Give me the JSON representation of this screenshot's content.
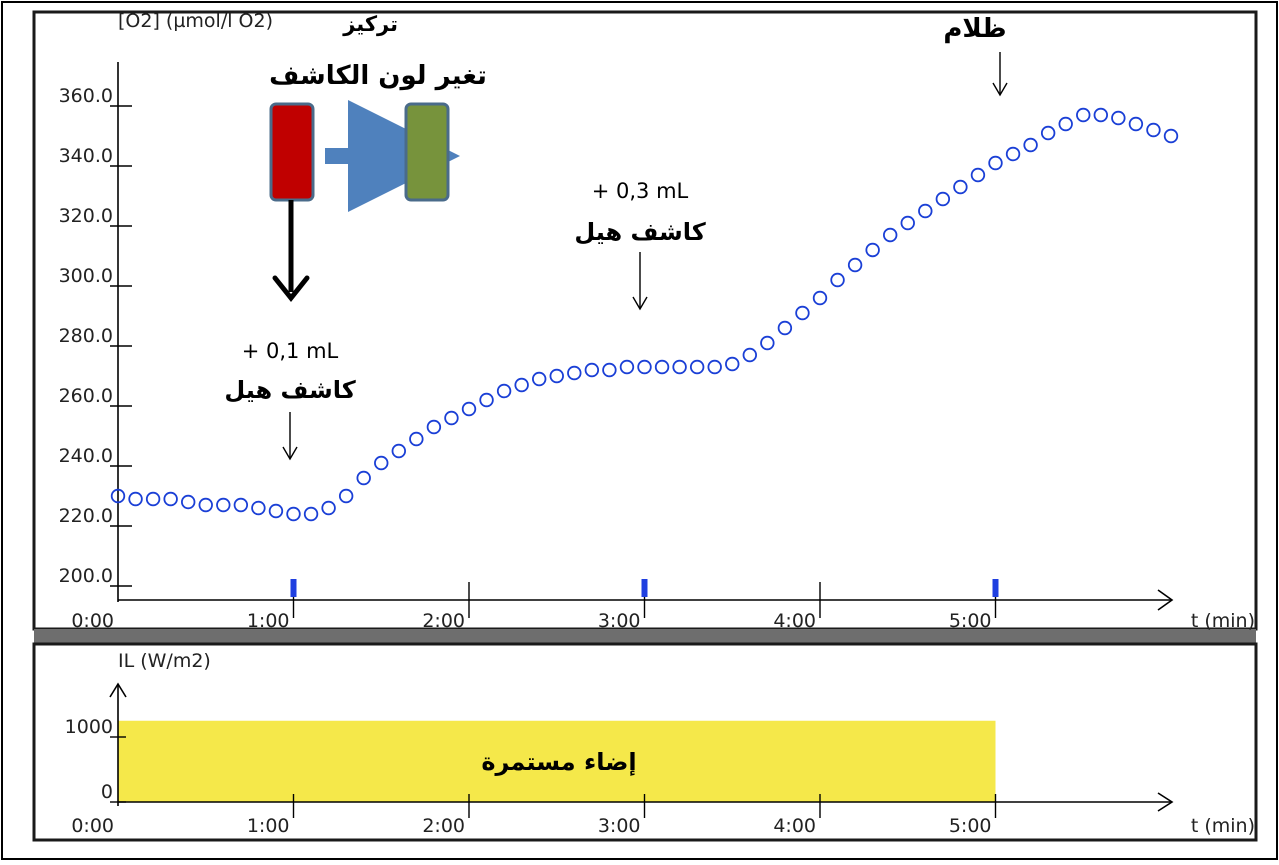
{
  "chart_data": [
    {
      "type": "scatter",
      "ylabel": "[O2] (µmol/l O2)",
      "ylabel_ar": "تركيز",
      "xlabel": "t (min)",
      "x_tick_labels": [
        "0:00",
        "1:00",
        "2:00",
        "3:00",
        "4:00",
        "5:00"
      ],
      "y_tick_labels": [
        "200.0",
        "220.0",
        "240.0",
        "260.0",
        "280.0",
        "300.0",
        "320.0",
        "340.0",
        "360.0"
      ],
      "xlim": [
        0,
        6.1
      ],
      "ylim": [
        190,
        370
      ],
      "marker_color": "#1a3fd6",
      "x": [
        0.0,
        0.1,
        0.2,
        0.3,
        0.4,
        0.5,
        0.6,
        0.7,
        0.8,
        0.9,
        1.0,
        1.1,
        1.2,
        1.3,
        1.4,
        1.5,
        1.6,
        1.7,
        1.8,
        1.9,
        2.0,
        2.1,
        2.2,
        2.3,
        2.4,
        2.5,
        2.6,
        2.7,
        2.8,
        2.9,
        3.0,
        3.1,
        3.2,
        3.3,
        3.4,
        3.5,
        3.6,
        3.7,
        3.8,
        3.9,
        4.0,
        4.1,
        4.2,
        4.3,
        4.4,
        4.5,
        4.6,
        4.7,
        4.8,
        4.9,
        5.0,
        5.1,
        5.2,
        5.3,
        5.4,
        5.5,
        5.6,
        5.7,
        5.8,
        5.9,
        6.0
      ],
      "values": [
        230,
        229,
        229,
        229,
        228,
        227,
        227,
        227,
        226,
        225,
        224,
        224,
        226,
        230,
        236,
        241,
        245,
        249,
        253,
        256,
        259,
        262,
        265,
        267,
        269,
        270,
        271,
        272,
        272,
        273,
        273,
        273,
        273,
        273,
        273,
        274,
        277,
        281,
        286,
        291,
        296,
        302,
        307,
        312,
        317,
        321,
        325,
        329,
        333,
        337,
        341,
        344,
        347,
        351,
        354,
        357,
        357,
        356,
        354,
        352,
        350
      ],
      "annotations": [
        {
          "x": 1.0,
          "lines": [
            "+ 0,1 mL",
            "كاشف هيل"
          ]
        },
        {
          "x": 3.0,
          "lines": [
            "+ 0,3 mL",
            "كاشف هيل"
          ]
        },
        {
          "x": 5.0,
          "lines": [
            "ظلام"
          ]
        }
      ],
      "inset_label": "تغير لون الكاشف",
      "inset_colors": {
        "before": "#c00000",
        "after": "#77933c",
        "arrow": "#4f81bd"
      }
    },
    {
      "type": "area",
      "ylabel": "IL (W/m2)",
      "xlabel": "t (min)",
      "x_tick_labels": [
        "0:00",
        "1:00",
        "2:00",
        "3:00",
        "4:00",
        "5:00"
      ],
      "y_tick_labels": [
        "0",
        "1000"
      ],
      "xlim": [
        0,
        6.1
      ],
      "ylim": [
        0,
        1300
      ],
      "x": [
        0,
        5.0
      ],
      "values": [
        1250,
        1250
      ],
      "fill_color": "#f5e84a",
      "region_label": "إضاء مستمرة"
    }
  ]
}
